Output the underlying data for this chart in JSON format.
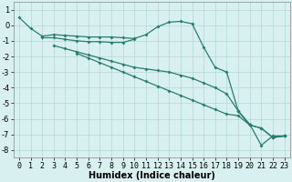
{
  "title": "",
  "xlabel": "Humidex (Indice chaleur)",
  "ylabel": "",
  "x_values": [
    0,
    1,
    2,
    3,
    4,
    5,
    6,
    7,
    8,
    9,
    10,
    11,
    12,
    13,
    14,
    15,
    16,
    17,
    18,
    19,
    20,
    21,
    22,
    23
  ],
  "line1": [
    0.5,
    -0.2,
    -0.7,
    -0.6,
    -0.65,
    -0.7,
    -0.75,
    -0.75,
    -0.75,
    -0.8,
    -0.85,
    -0.6,
    -0.1,
    0.2,
    0.25,
    0.1,
    -1.4,
    -2.7,
    -3.0,
    -5.5,
    -6.35,
    -7.7,
    -7.1,
    -7.1
  ],
  "line2": [
    null,
    null,
    -0.8,
    -0.8,
    -0.9,
    -1.0,
    -1.05,
    -1.05,
    -1.1,
    -1.1,
    -0.9,
    null,
    null,
    null,
    null,
    null,
    null,
    null,
    null,
    -5.5,
    -6.4,
    null,
    -7.2,
    -7.1
  ],
  "line3": [
    null,
    null,
    null,
    -1.3,
    -1.5,
    -1.7,
    -1.9,
    -2.1,
    -2.3,
    -2.5,
    -2.7,
    -2.8,
    -2.9,
    -3.0,
    -3.2,
    -3.4,
    -3.7,
    -4.0,
    -4.4,
    -5.5,
    -6.4,
    -6.6,
    -7.2,
    -7.1
  ],
  "line4": [
    null,
    null,
    null,
    null,
    null,
    -1.8,
    -2.1,
    -2.4,
    -2.7,
    -3.0,
    -3.3,
    -3.6,
    -3.9,
    -4.2,
    -4.5,
    -4.8,
    -5.1,
    -5.4,
    -5.7,
    -5.8,
    -6.4,
    -6.6,
    -7.2,
    -7.1
  ],
  "line_color": "#2a7d6e",
  "bg_color": "#d8f0ef",
  "grid_color": "#b8dbd8",
  "ylim": [
    -8.5,
    1.5
  ],
  "xlim": [
    -0.5,
    23.5
  ],
  "yticks": [
    -8,
    -7,
    -6,
    -5,
    -4,
    -3,
    -2,
    -1,
    0,
    1
  ],
  "xticks": [
    0,
    1,
    2,
    3,
    4,
    5,
    6,
    7,
    8,
    9,
    10,
    11,
    12,
    13,
    14,
    15,
    16,
    17,
    18,
    19,
    20,
    21,
    22,
    23
  ],
  "xlabel_fontsize": 7,
  "tick_fontsize": 6,
  "marker_size": 2.0,
  "line_width": 0.9
}
